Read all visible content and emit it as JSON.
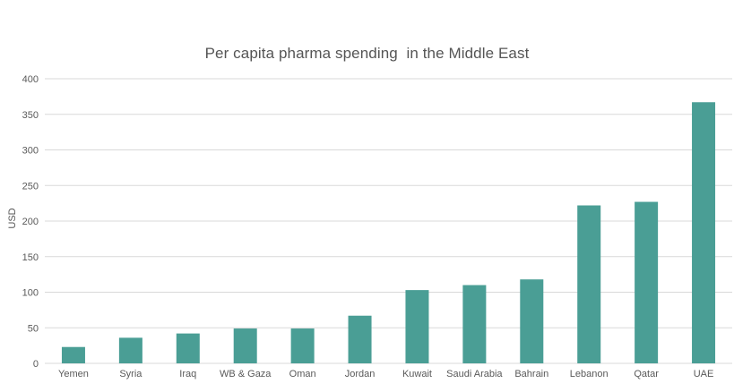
{
  "chart_data": {
    "type": "bar",
    "title": "Per capita pharma spending  in the Middle East",
    "xlabel": "",
    "ylabel": "USD",
    "ylim": [
      0,
      400
    ],
    "yticks": [
      0,
      50,
      100,
      150,
      200,
      250,
      300,
      350,
      400
    ],
    "grid": true,
    "categories": [
      "Yemen",
      "Syria",
      "Iraq",
      "WB & Gaza",
      "Oman",
      "Jordan",
      "Kuwait",
      "Saudi Arabia",
      "Bahrain",
      "Lebanon",
      "Qatar",
      "UAE"
    ],
    "values": [
      23,
      36,
      42,
      49,
      49,
      67,
      103,
      110,
      118,
      222,
      227,
      367
    ],
    "bar_color": "#4a9e95",
    "grid_color": "#d9d9d9"
  }
}
